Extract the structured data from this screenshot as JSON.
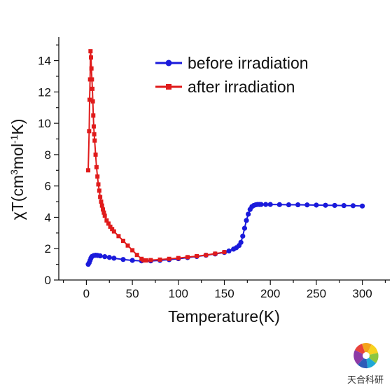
{
  "chart_data": {
    "type": "scatter",
    "xlabel": "Temperature(K)",
    "ylabel": "χT(cm³mol⁻¹K)",
    "ylabel_parts": {
      "pre": "χT(cm",
      "sup1": "3",
      "mid": "mol",
      "sup2": "-1",
      "post": "K)"
    },
    "xlim": [
      -30,
      330
    ],
    "ylim": [
      0,
      15.5
    ],
    "xticks": [
      0,
      50,
      100,
      150,
      200,
      250,
      300
    ],
    "yticks": [
      0,
      2,
      4,
      6,
      8,
      10,
      12,
      14
    ],
    "grid": false,
    "legend_position": "top-right",
    "series": [
      {
        "name": "before irradiation",
        "color": "#1a1adb",
        "marker": "circle",
        "x": [
          2,
          3,
          4,
          5,
          6,
          8,
          10,
          12,
          15,
          20,
          25,
          30,
          40,
          50,
          60,
          70,
          80,
          90,
          100,
          110,
          120,
          130,
          140,
          150,
          155,
          160,
          163,
          166,
          168,
          170,
          172,
          174,
          176,
          178,
          180,
          182,
          184,
          186,
          188,
          190,
          195,
          200,
          210,
          220,
          230,
          240,
          250,
          260,
          270,
          280,
          290,
          300
        ],
        "y": [
          1.0,
          1.1,
          1.25,
          1.4,
          1.5,
          1.56,
          1.58,
          1.57,
          1.54,
          1.49,
          1.44,
          1.39,
          1.31,
          1.25,
          1.22,
          1.22,
          1.25,
          1.3,
          1.36,
          1.43,
          1.5,
          1.58,
          1.66,
          1.76,
          1.85,
          1.97,
          2.06,
          2.2,
          2.4,
          2.8,
          3.3,
          3.8,
          4.2,
          4.5,
          4.68,
          4.76,
          4.8,
          4.82,
          4.82,
          4.82,
          4.82,
          4.82,
          4.81,
          4.8,
          4.8,
          4.79,
          4.78,
          4.77,
          4.76,
          4.75,
          4.74,
          4.72
        ]
      },
      {
        "name": "after irradiation",
        "color": "#e01b1b",
        "marker": "square",
        "x": [
          2,
          3,
          3.5,
          4,
          4.5,
          5,
          5.5,
          6,
          6.5,
          7,
          7.5,
          8,
          8.5,
          9,
          10,
          11,
          12,
          13,
          14,
          15,
          16,
          17,
          18,
          19,
          20,
          22,
          24,
          26,
          28,
          30,
          35,
          40,
          45,
          50,
          55,
          60,
          62,
          65,
          70,
          80,
          90,
          100,
          110,
          120,
          130,
          140,
          150
        ],
        "y": [
          7.0,
          9.5,
          11.5,
          12.8,
          14.6,
          14.2,
          13.5,
          12.8,
          12.2,
          11.4,
          10.5,
          9.8,
          9.3,
          8.9,
          8.0,
          7.2,
          6.6,
          6.1,
          5.7,
          5.3,
          5.0,
          4.75,
          4.5,
          4.3,
          4.1,
          3.8,
          3.6,
          3.4,
          3.25,
          3.1,
          2.8,
          2.5,
          2.2,
          1.9,
          1.6,
          1.35,
          1.25,
          1.25,
          1.27,
          1.3,
          1.35,
          1.4,
          1.46,
          1.52,
          1.59,
          1.68,
          1.78
        ]
      }
    ]
  },
  "watermark": {
    "text": "天合科研",
    "logo": "pinwheel-logo"
  }
}
